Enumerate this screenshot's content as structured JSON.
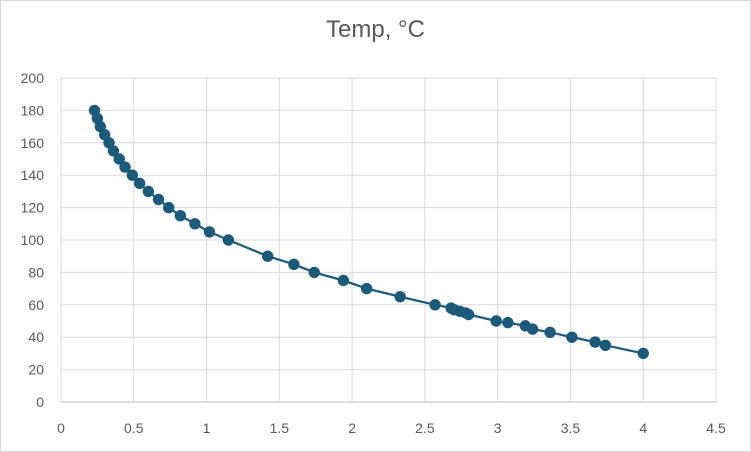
{
  "chart_data": {
    "type": "scatter",
    "title": "Temp, °C",
    "xlabel": "",
    "ylabel": "",
    "xlim": [
      0,
      4.5
    ],
    "ylim": [
      0,
      200
    ],
    "x_ticks": [
      0,
      0.5,
      1,
      1.5,
      2,
      2.5,
      3,
      3.5,
      4,
      4.5
    ],
    "x_tick_labels": [
      "0",
      "0.5",
      "1",
      "1.5",
      "2",
      "2.5",
      "3",
      "3.5",
      "4",
      "4.5"
    ],
    "y_ticks": [
      0,
      20,
      40,
      60,
      80,
      100,
      120,
      140,
      160,
      180,
      200
    ],
    "y_tick_labels": [
      "0",
      "20",
      "40",
      "60",
      "80",
      "100",
      "120",
      "140",
      "160",
      "180",
      "200"
    ],
    "grid": true,
    "legend": "none",
    "line": true,
    "markers": true,
    "series": [
      {
        "color": "#1b5a7a",
        "points": [
          [
            0.23,
            180
          ],
          [
            0.25,
            175
          ],
          [
            0.27,
            170
          ],
          [
            0.3,
            165
          ],
          [
            0.33,
            160
          ],
          [
            0.36,
            155
          ],
          [
            0.4,
            150
          ],
          [
            0.44,
            145
          ],
          [
            0.49,
            140
          ],
          [
            0.54,
            135
          ],
          [
            0.6,
            130
          ],
          [
            0.67,
            125
          ],
          [
            0.74,
            120
          ],
          [
            0.82,
            115
          ],
          [
            0.92,
            110
          ],
          [
            1.02,
            105
          ],
          [
            1.15,
            100
          ],
          [
            1.42,
            90
          ],
          [
            1.6,
            85
          ],
          [
            1.74,
            80
          ],
          [
            1.94,
            75
          ],
          [
            2.1,
            70
          ],
          [
            2.33,
            65
          ],
          [
            2.57,
            60
          ],
          [
            2.68,
            58
          ],
          [
            2.7,
            57
          ],
          [
            2.74,
            56
          ],
          [
            2.78,
            55
          ],
          [
            2.8,
            54
          ],
          [
            2.99,
            50
          ],
          [
            3.07,
            49
          ],
          [
            3.19,
            47
          ],
          [
            3.24,
            45
          ],
          [
            3.36,
            43
          ],
          [
            3.51,
            40
          ],
          [
            3.67,
            37
          ],
          [
            3.74,
            35
          ],
          [
            4.0,
            30
          ]
        ]
      }
    ]
  }
}
